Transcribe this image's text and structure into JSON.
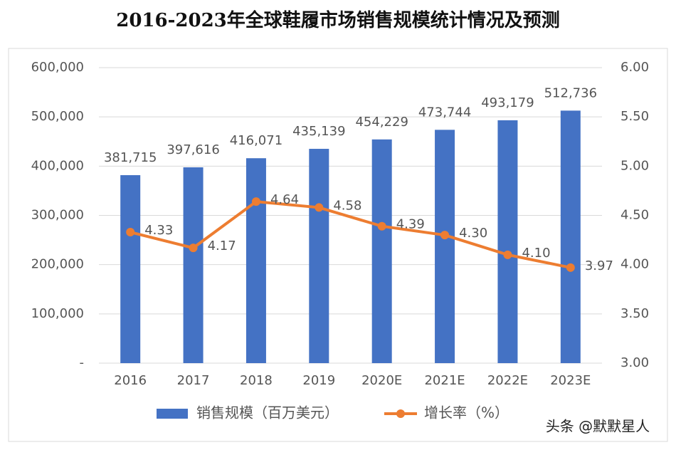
{
  "chart_data": {
    "type": "bar_line",
    "title": "2016-2023年全球鞋履市场销售规模统计情况及预测",
    "categories": [
      "2016",
      "2017",
      "2018",
      "2019",
      "2020E",
      "2021E",
      "2022E",
      "2023E"
    ],
    "series": [
      {
        "name": "销售规模（百万美元）",
        "color": "#4472c4",
        "type": "bar",
        "values": [
          381715,
          397616,
          416071,
          435139,
          454229,
          473744,
          493179,
          512736
        ],
        "value_labels": [
          "381,715",
          "397,616",
          "416,071",
          "435,139",
          "454,229",
          "473,744",
          "493,179",
          "512,736"
        ]
      },
      {
        "name": "增长率（%）",
        "color": "#ed7d31",
        "type": "line",
        "axis": "y2",
        "values": [
          4.33,
          4.17,
          4.64,
          4.58,
          4.39,
          4.3,
          4.1,
          3.97
        ],
        "value_labels": [
          "4.33",
          "4.17",
          "4.64",
          "4.58",
          "4.39",
          "4.30",
          "4.10",
          "3.97"
        ]
      }
    ],
    "ylim": [
      0,
      600000
    ],
    "yticks": [
      {
        "value": 0,
        "label": "-"
      },
      {
        "value": 100000,
        "label": "100,000"
      },
      {
        "value": 200000,
        "label": "200,000"
      },
      {
        "value": 300000,
        "label": "300,000"
      },
      {
        "value": 400000,
        "label": "400,000"
      },
      {
        "value": 500000,
        "label": "500,000"
      },
      {
        "value": 600000,
        "label": "600,000"
      }
    ],
    "y2lim": [
      3,
      6
    ],
    "y2ticks": [
      {
        "value": 3,
        "label": "3.00"
      },
      {
        "value": 3.5,
        "label": "3.50"
      },
      {
        "value": 4,
        "label": "4.00"
      },
      {
        "value": 4.5,
        "label": "4.50"
      },
      {
        "value": 5,
        "label": "5.00"
      },
      {
        "value": 5.5,
        "label": "5.50"
      },
      {
        "value": 6,
        "label": "6.00"
      }
    ],
    "grid": true,
    "legend": "bottom",
    "watermark": "头条 @默默星人"
  }
}
